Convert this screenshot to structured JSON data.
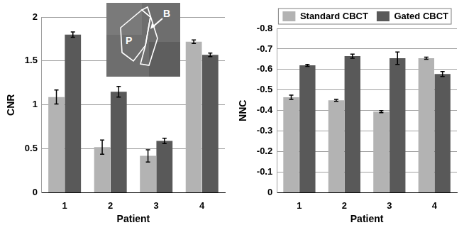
{
  "chart_data": [
    {
      "type": "bar",
      "y_label": "CNR",
      "x_label": "Patient",
      "categories": [
        "1",
        "2",
        "3",
        "4"
      ],
      "series": [
        {
          "name": "Standard CBCT",
          "color": "#b3b3b3",
          "values": [
            1.09,
            0.52,
            0.42,
            1.72
          ],
          "errors": [
            0.08,
            0.08,
            0.07,
            0.02
          ]
        },
        {
          "name": "Gated CBCT",
          "color": "#595959",
          "values": [
            1.8,
            1.15,
            0.59,
            1.57
          ],
          "errors": [
            0.03,
            0.06,
            0.03,
            0.02
          ]
        }
      ],
      "ylim": [
        0,
        2
      ],
      "yticks": [
        0,
        0.5,
        1,
        1.5,
        2
      ],
      "grid": true,
      "annotations": [
        "P",
        "B"
      ]
    },
    {
      "type": "bar",
      "y_label": "NNC",
      "x_label": "Patient",
      "categories": [
        "1",
        "2",
        "3",
        "4"
      ],
      "series": [
        {
          "name": "Standard CBCT",
          "color": "#b3b3b3",
          "values": [
            -0.465,
            -0.45,
            -0.395,
            -0.655
          ],
          "errors": [
            0.01,
            0.005,
            0.005,
            0.005
          ]
        },
        {
          "name": "Gated CBCT",
          "color": "#595959",
          "values": [
            -0.62,
            -0.665,
            -0.655,
            -0.578
          ],
          "errors": [
            0.005,
            0.01,
            0.03,
            0.012
          ]
        }
      ],
      "ylim": [
        0,
        -0.8
      ],
      "yticks": [
        0,
        -0.1,
        -0.2,
        -0.3,
        -0.4,
        -0.5,
        -0.6,
        -0.7,
        -0.8
      ],
      "grid": true,
      "legend": "top right"
    }
  ]
}
